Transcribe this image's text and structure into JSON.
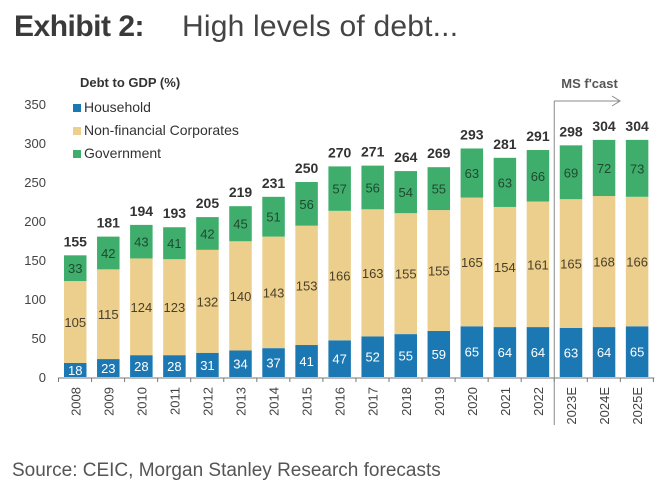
{
  "header": {
    "exhibit": "Exhibit 2:",
    "subtitle": "High levels of debt..."
  },
  "footer": {
    "source": "Source: CEIC, Morgan Stanley Research forecasts"
  },
  "chart_data": {
    "type": "bar",
    "stacked": true,
    "title": "Exhibit 2: High levels of debt...",
    "ylabel": "Debt to GDP (%)",
    "xlabel": "",
    "ylim": [
      0,
      350
    ],
    "yticks": [
      0,
      50,
      100,
      150,
      200,
      250,
      300,
      350
    ],
    "grid": false,
    "legend_position": "top-left",
    "categories": [
      "2008",
      "2009",
      "2010",
      "2011",
      "2012",
      "2013",
      "2014",
      "2015",
      "2016",
      "2017",
      "2018",
      "2019",
      "2020",
      "2021",
      "2022",
      "2023E",
      "2024E",
      "2025E"
    ],
    "series": [
      {
        "name": "Household",
        "color": "#1b78b3",
        "label_color": "#ffffff",
        "values": [
          18,
          23,
          28,
          28,
          31,
          34,
          37,
          41,
          47,
          52,
          55,
          59,
          65,
          64,
          64,
          63,
          64,
          65
        ]
      },
      {
        "name": "Non-financial Corporates",
        "color": "#eccf8c",
        "label_color": "#4a3f2a",
        "values": [
          105,
          115,
          124,
          123,
          132,
          140,
          143,
          153,
          166,
          163,
          155,
          155,
          165,
          154,
          161,
          165,
          168,
          166
        ]
      },
      {
        "name": "Government",
        "color": "#3fae6c",
        "label_color": "#1f4a2f",
        "values": [
          33,
          42,
          43,
          41,
          42,
          45,
          51,
          56,
          57,
          56,
          54,
          55,
          63,
          63,
          66,
          69,
          72,
          73
        ]
      }
    ],
    "totals": [
      155,
      181,
      194,
      193,
      205,
      219,
      231,
      250,
      270,
      271,
      264,
      269,
      293,
      281,
      291,
      298,
      304,
      304
    ],
    "annotation": {
      "text": "MS f'cast",
      "starts_at_category": "2023E"
    }
  }
}
